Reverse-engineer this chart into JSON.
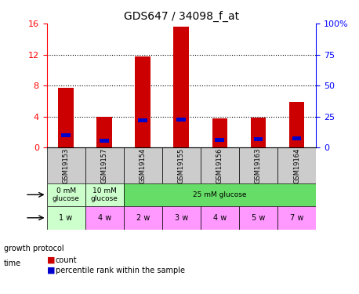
{
  "title": "GDS647 / 34098_f_at",
  "samples": [
    "GSM19153",
    "GSM19157",
    "GSM19154",
    "GSM19155",
    "GSM19156",
    "GSM19163",
    "GSM19164"
  ],
  "count_values": [
    7.7,
    4.0,
    11.8,
    15.6,
    3.8,
    3.9,
    5.9
  ],
  "percentile_values": [
    10.0,
    5.5,
    22.0,
    22.5,
    6.0,
    7.0,
    7.5
  ],
  "bar_color": "#cc0000",
  "pct_color": "#0000cc",
  "ylim_left": [
    0,
    16
  ],
  "ylim_right": [
    0,
    100
  ],
  "yticks_left": [
    0,
    4,
    8,
    12,
    16
  ],
  "yticks_right": [
    0,
    25,
    50,
    75,
    100
  ],
  "ytick_labels_right": [
    "0",
    "25",
    "50",
    "75",
    "100%"
  ],
  "growth_protocol_groups": [
    {
      "label": "0 mM\nglucose",
      "start": 0,
      "end": 1,
      "color": "#ccffcc"
    },
    {
      "label": "10 mM\nglucose",
      "start": 1,
      "end": 2,
      "color": "#ccffcc"
    },
    {
      "label": "25 mM glucose",
      "start": 2,
      "end": 7,
      "color": "#66dd66"
    }
  ],
  "time_labels": [
    "1 w",
    "4 w",
    "2 w",
    "3 w",
    "4 w",
    "5 w",
    "7 w"
  ],
  "time_colors": [
    "#ccffcc",
    "#ff99ff",
    "#ff99ff",
    "#ff99ff",
    "#ff99ff",
    "#ff99ff",
    "#ff99ff"
  ],
  "sample_bg_color": "#cccccc",
  "legend_count_color": "#cc0000",
  "legend_pct_color": "#0000cc",
  "bar_width": 0.4,
  "left_label_growth": "growth protocol",
  "left_label_time": "time",
  "legend_label_count": "count",
  "legend_label_pct": "percentile rank within the sample"
}
